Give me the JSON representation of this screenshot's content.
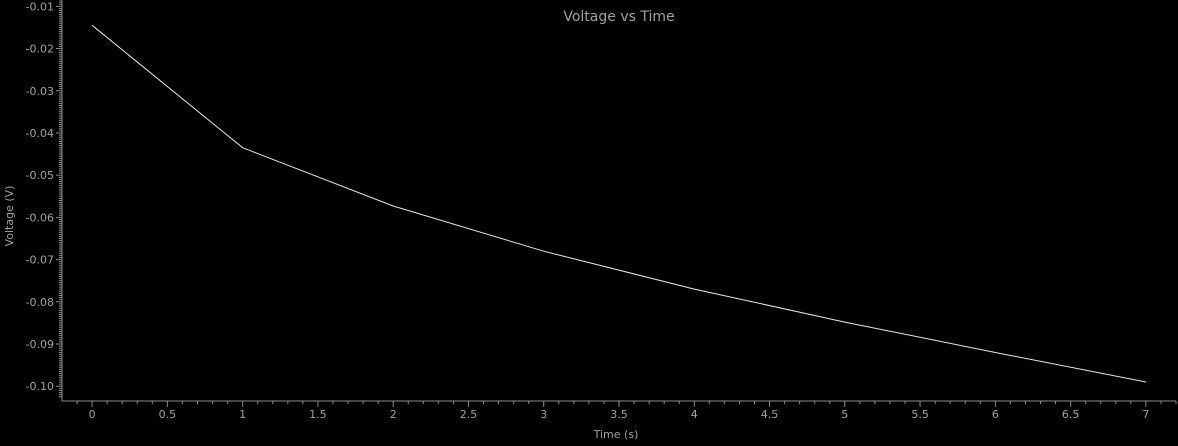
{
  "chart_data": {
    "type": "line",
    "title": "Voltage vs Time",
    "xlabel": "Time (s)",
    "ylabel": "Voltage (V)",
    "xlim": [
      -0.2,
      7.2
    ],
    "ylim": [
      -0.1035,
      -0.0085
    ],
    "x_ticks": [
      "0",
      "0.5",
      "1",
      "1.5",
      "2",
      "2.5",
      "3",
      "3.5",
      "4",
      "4.5",
      "5",
      "5.5",
      "6",
      "6.5",
      "7"
    ],
    "y_ticks": [
      "-0.01",
      "-0.02",
      "-0.03",
      "-0.04",
      "-0.05",
      "-0.06",
      "-0.07",
      "-0.08",
      "-0.09",
      "-0.10"
    ],
    "grid": false,
    "series": [
      {
        "x": [
          0,
          1,
          2,
          3,
          4,
          5,
          6,
          7
        ],
        "values": [
          -0.0145,
          -0.0435,
          -0.0573,
          -0.068,
          -0.077,
          -0.0848,
          -0.092,
          -0.099
        ]
      }
    ],
    "colors": {
      "background": "#000000",
      "line": "#e6e6e6",
      "axis": "#8c8c8c",
      "text": "#a0a0a0"
    }
  }
}
